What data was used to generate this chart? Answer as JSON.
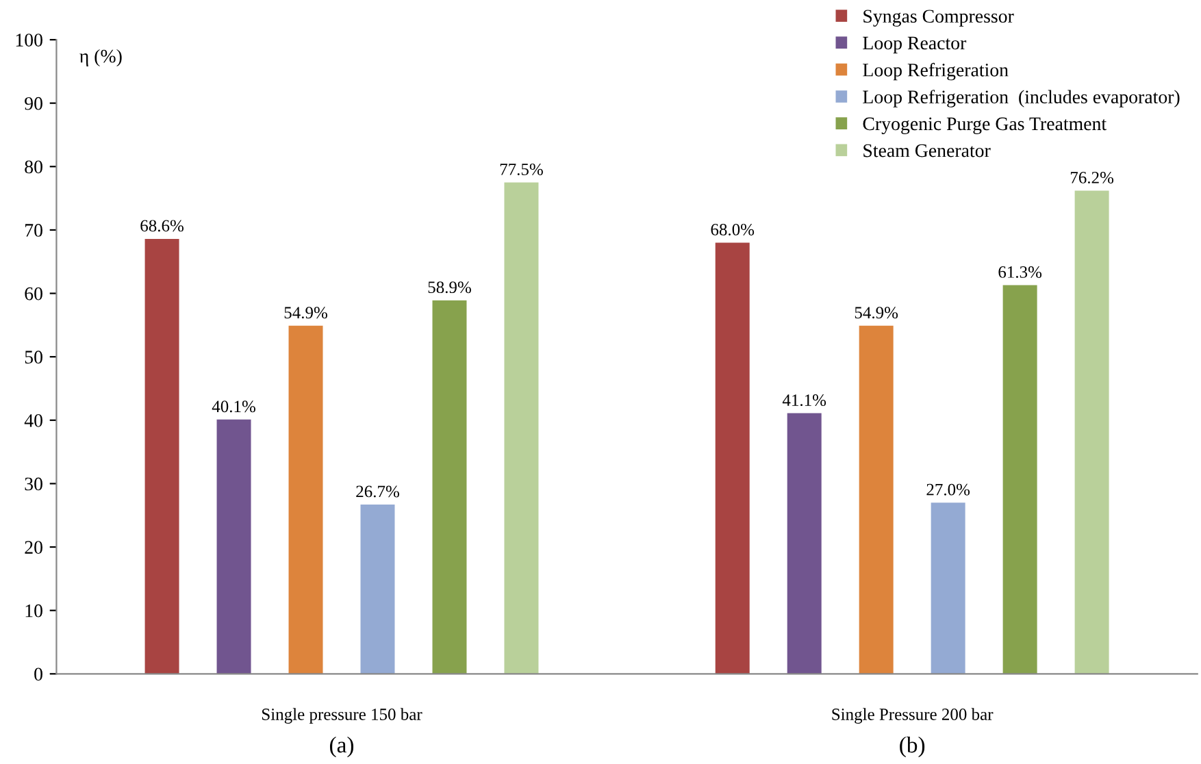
{
  "chart_data": {
    "type": "bar",
    "ylabel": "η (%)",
    "categories": [
      "Single pressure 150 bar",
      "Single Pressure 200 bar"
    ],
    "series": [
      {
        "name": "Syngas Compressor",
        "color": "#a84442",
        "values": [
          68.6,
          68.0
        ],
        "value_labels": [
          "68.6%",
          "68.0%"
        ]
      },
      {
        "name": "Loop Reactor",
        "color": "#71558f",
        "values": [
          40.1,
          41.1
        ],
        "value_labels": [
          "40.1%",
          "41.1%"
        ]
      },
      {
        "name": "Loop Refrigeration",
        "color": "#dd843c",
        "values": [
          54.9,
          54.9
        ],
        "value_labels": [
          "54.9%",
          "54.9%"
        ]
      },
      {
        "name": "Loop Refrigeration  (includes evaporator)",
        "color": "#94aad3",
        "values": [
          26.7,
          27.0
        ],
        "value_labels": [
          "26.7%",
          "27.0%"
        ]
      },
      {
        "name": "Cryogenic Purge Gas Treatment",
        "color": "#87a24d",
        "values": [
          58.9,
          61.3
        ],
        "value_labels": [
          "58.9%",
          "61.3%"
        ]
      },
      {
        "name": "Steam Generator",
        "color": "#b9d09a",
        "values": [
          77.5,
          76.2
        ],
        "value_labels": [
          "77.5%",
          "76.2%"
        ]
      }
    ],
    "ylim": [
      0,
      100
    ],
    "yticks": [
      0,
      10,
      20,
      30,
      40,
      50,
      60,
      70,
      80,
      90,
      100
    ],
    "grid": false,
    "legend": "top right",
    "annotations": [
      "(a)",
      "(b)"
    ]
  }
}
